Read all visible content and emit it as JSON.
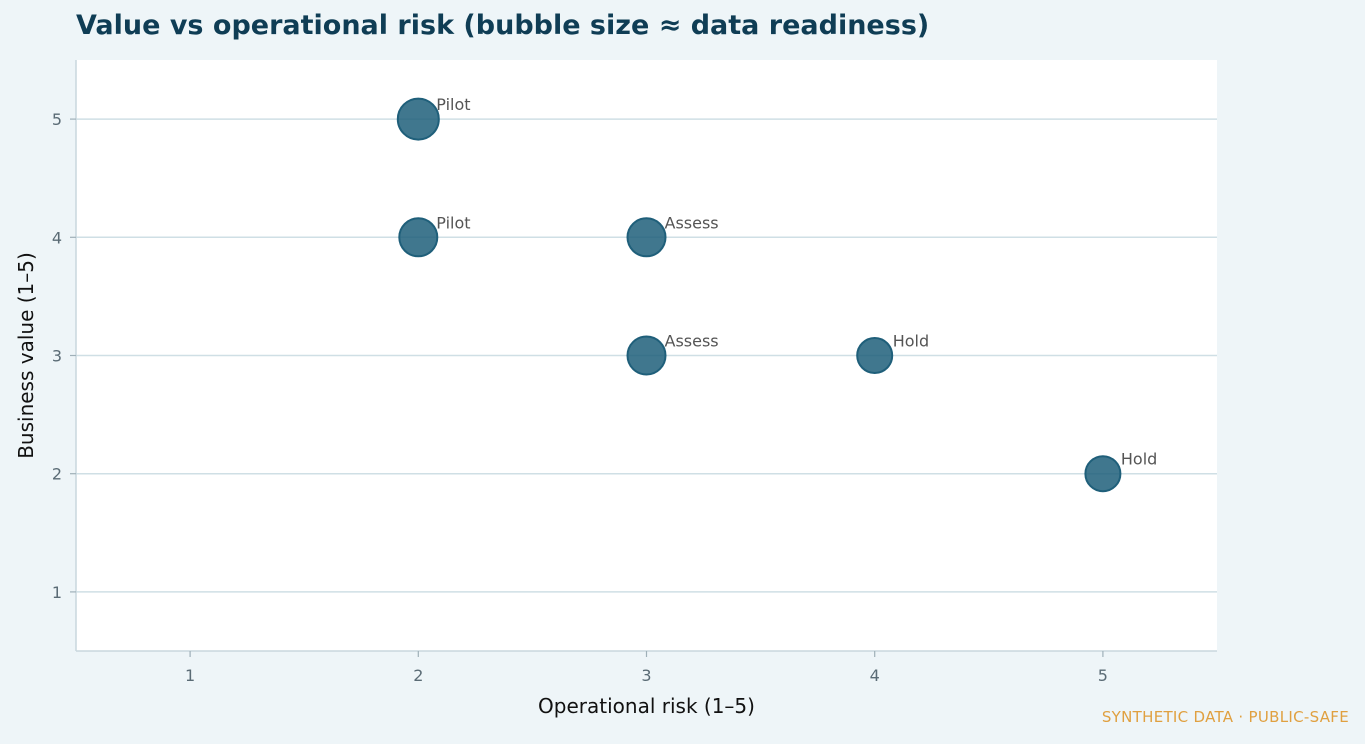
{
  "chart_data": {
    "type": "scatter",
    "title": "Value vs operational risk (bubble size ≈ data readiness)",
    "xlabel": "Operational risk (1–5)",
    "ylabel": "Business value (1–5)",
    "xlim": [
      0.5,
      5.5
    ],
    "ylim": [
      0.5,
      5.5
    ],
    "xticks": [
      1,
      2,
      3,
      4,
      5
    ],
    "yticks": [
      1,
      2,
      3,
      4,
      5
    ],
    "grid": "horizontal",
    "points": [
      {
        "x": 2,
        "y": 5,
        "label": "Pilot",
        "size": 4
      },
      {
        "x": 2,
        "y": 4,
        "label": "Pilot",
        "size": 3.5
      },
      {
        "x": 3,
        "y": 4,
        "label": "Assess",
        "size": 3.5
      },
      {
        "x": 3,
        "y": 3,
        "label": "Assess",
        "size": 3.5
      },
      {
        "x": 4,
        "y": 3,
        "label": "Hold",
        "size": 3
      },
      {
        "x": 5,
        "y": 2,
        "label": "Hold",
        "size": 3
      }
    ],
    "colors": {
      "bubble_fill": "#1f5f7a",
      "bubble_stroke": "#1f5f7a",
      "grid": "#cfdfe5",
      "plot_bg": "#ffffff",
      "page_bg": "#eef5f8",
      "title": "#0f3d55"
    }
  },
  "watermark": "SYNTHETIC DATA · PUBLIC-SAFE"
}
